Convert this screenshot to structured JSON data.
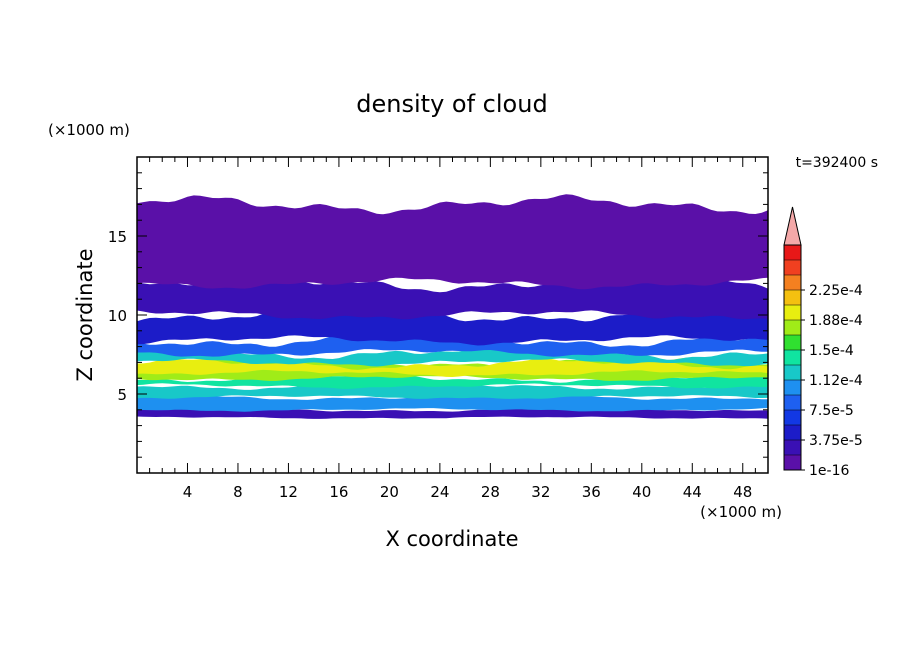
{
  "chart_data": {
    "type": "heatmap",
    "title": "density of cloud",
    "xlabel": "X coordinate",
    "ylabel": "Z coordinate",
    "x_unit": "(×1000 m)",
    "y_unit": "(×1000 m)",
    "time_label": "t=392400 s",
    "xlim": [
      0,
      50
    ],
    "ylim": [
      0,
      20
    ],
    "x_ticks": [
      4,
      8,
      12,
      16,
      20,
      24,
      28,
      32,
      36,
      40,
      44,
      48
    ],
    "y_ticks": [
      5,
      10,
      15
    ],
    "colorbar": {
      "levels": [
        1e-16,
        1.875e-05,
        3.75e-05,
        5.625e-05,
        7.5e-05,
        9.375e-05,
        0.0001125,
        0.00013125,
        0.00015,
        0.00016875,
        0.0001875,
        0.00020625,
        0.000225,
        0.00024375
      ],
      "tick_labels": [
        "1e-16",
        "3.75e-5",
        "7.5e-5",
        "1.12e-4",
        "1.5e-4",
        "1.88e-4",
        "2.25e-4"
      ],
      "colors": [
        "#5a10a8",
        "#3a10b4",
        "#1c1cc8",
        "#1238e4",
        "#1e60f0",
        "#1e90f0",
        "#18c8c8",
        "#10e4a0",
        "#30e030",
        "#a0ec18",
        "#e8ee10",
        "#f4c010",
        "#f48020",
        "#f04020",
        "#e81818"
      ],
      "extend_color": "#f4a8a8"
    },
    "layers": [
      {
        "z_bottom": 3.5,
        "z_top": 4.0,
        "level": 1
      },
      {
        "z_bottom": 4.0,
        "z_top": 4.8,
        "level": 5
      },
      {
        "z_bottom": 4.8,
        "z_top": 5.5,
        "level": 6
      },
      {
        "z_bottom": 5.5,
        "z_top": 6.0,
        "level": 7
      },
      {
        "z_bottom": 6.0,
        "z_top": 7.0,
        "level": 9
      },
      {
        "z_bottom": 6.3,
        "z_top": 6.9,
        "level": 10
      },
      {
        "z_bottom": 7.0,
        "z_top": 7.6,
        "level": 6
      },
      {
        "z_bottom": 7.6,
        "z_top": 8.4,
        "level": 4
      },
      {
        "z_bottom": 8.4,
        "z_top": 10.0,
        "level": 2
      },
      {
        "z_bottom": 10.0,
        "z_top": 12.0,
        "level": 1
      },
      {
        "z_bottom": 12.0,
        "z_top": 17.0,
        "level": 0
      }
    ]
  }
}
